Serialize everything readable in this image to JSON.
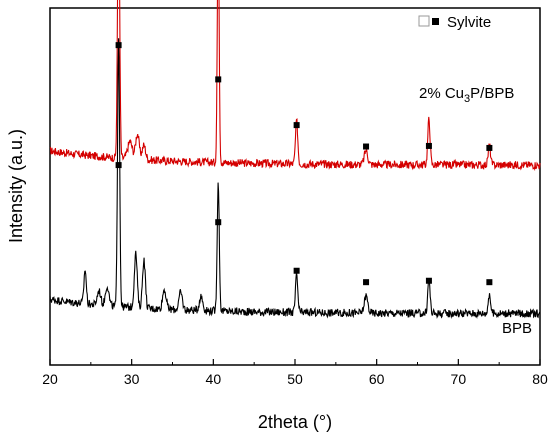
{
  "chart_data": {
    "type": "line",
    "xlabel": "2theta (°)",
    "ylabel": "Intensity (a.u.)",
    "xlim": [
      20,
      80
    ],
    "x_ticks": [
      "20",
      "30",
      "40",
      "50",
      "60",
      "70",
      "80"
    ],
    "grid": false,
    "legend": {
      "label": "Sylvite",
      "marker": "square",
      "position": "top-right"
    },
    "peak_markers": [
      28.4,
      40.6,
      50.2,
      58.7,
      66.4,
      73.8
    ],
    "series": [
      {
        "name": "2% Cu3P/BPB",
        "label_main": "2% Cu",
        "label_sub": "3",
        "label_rest": "P/BPB",
        "color": "#d40000",
        "baseline": 0.7,
        "marker_y": [
          1.12,
          1.0,
          0.84,
          0.765,
          0.767,
          0.76
        ],
        "peaks": [
          {
            "x": 28.4,
            "h": 0.95,
            "w": 0.18
          },
          {
            "x": 29.8,
            "h": 0.06,
            "w": 0.4
          },
          {
            "x": 30.7,
            "h": 0.09,
            "w": 0.3
          },
          {
            "x": 31.5,
            "h": 0.05,
            "w": 0.3
          },
          {
            "x": 40.6,
            "h": 0.84,
            "w": 0.16
          },
          {
            "x": 50.2,
            "h": 0.15,
            "w": 0.2
          },
          {
            "x": 58.7,
            "h": 0.05,
            "w": 0.3
          },
          {
            "x": 66.4,
            "h": 0.16,
            "w": 0.2
          },
          {
            "x": 73.8,
            "h": 0.07,
            "w": 0.2
          }
        ]
      },
      {
        "name": "BPB",
        "label_main": "BPB",
        "label_sub": "",
        "label_rest": "",
        "color": "#000000",
        "baseline": 0.18,
        "marker_y": [
          0.7,
          0.5,
          0.33,
          0.29,
          0.295,
          0.29
        ],
        "peaks": [
          {
            "x": 24.3,
            "h": 0.12,
            "w": 0.2
          },
          {
            "x": 26.0,
            "h": 0.05,
            "w": 0.3
          },
          {
            "x": 27.0,
            "h": 0.07,
            "w": 0.3
          },
          {
            "x": 28.4,
            "h": 0.95,
            "w": 0.18
          },
          {
            "x": 30.5,
            "h": 0.19,
            "w": 0.25
          },
          {
            "x": 31.5,
            "h": 0.17,
            "w": 0.25
          },
          {
            "x": 34.0,
            "h": 0.07,
            "w": 0.3
          },
          {
            "x": 36.0,
            "h": 0.06,
            "w": 0.3
          },
          {
            "x": 38.5,
            "h": 0.05,
            "w": 0.3
          },
          {
            "x": 40.6,
            "h": 0.45,
            "w": 0.18
          },
          {
            "x": 50.2,
            "h": 0.13,
            "w": 0.2
          },
          {
            "x": 58.7,
            "h": 0.06,
            "w": 0.3
          },
          {
            "x": 66.4,
            "h": 0.12,
            "w": 0.2
          },
          {
            "x": 73.8,
            "h": 0.07,
            "w": 0.2
          }
        ]
      }
    ]
  }
}
